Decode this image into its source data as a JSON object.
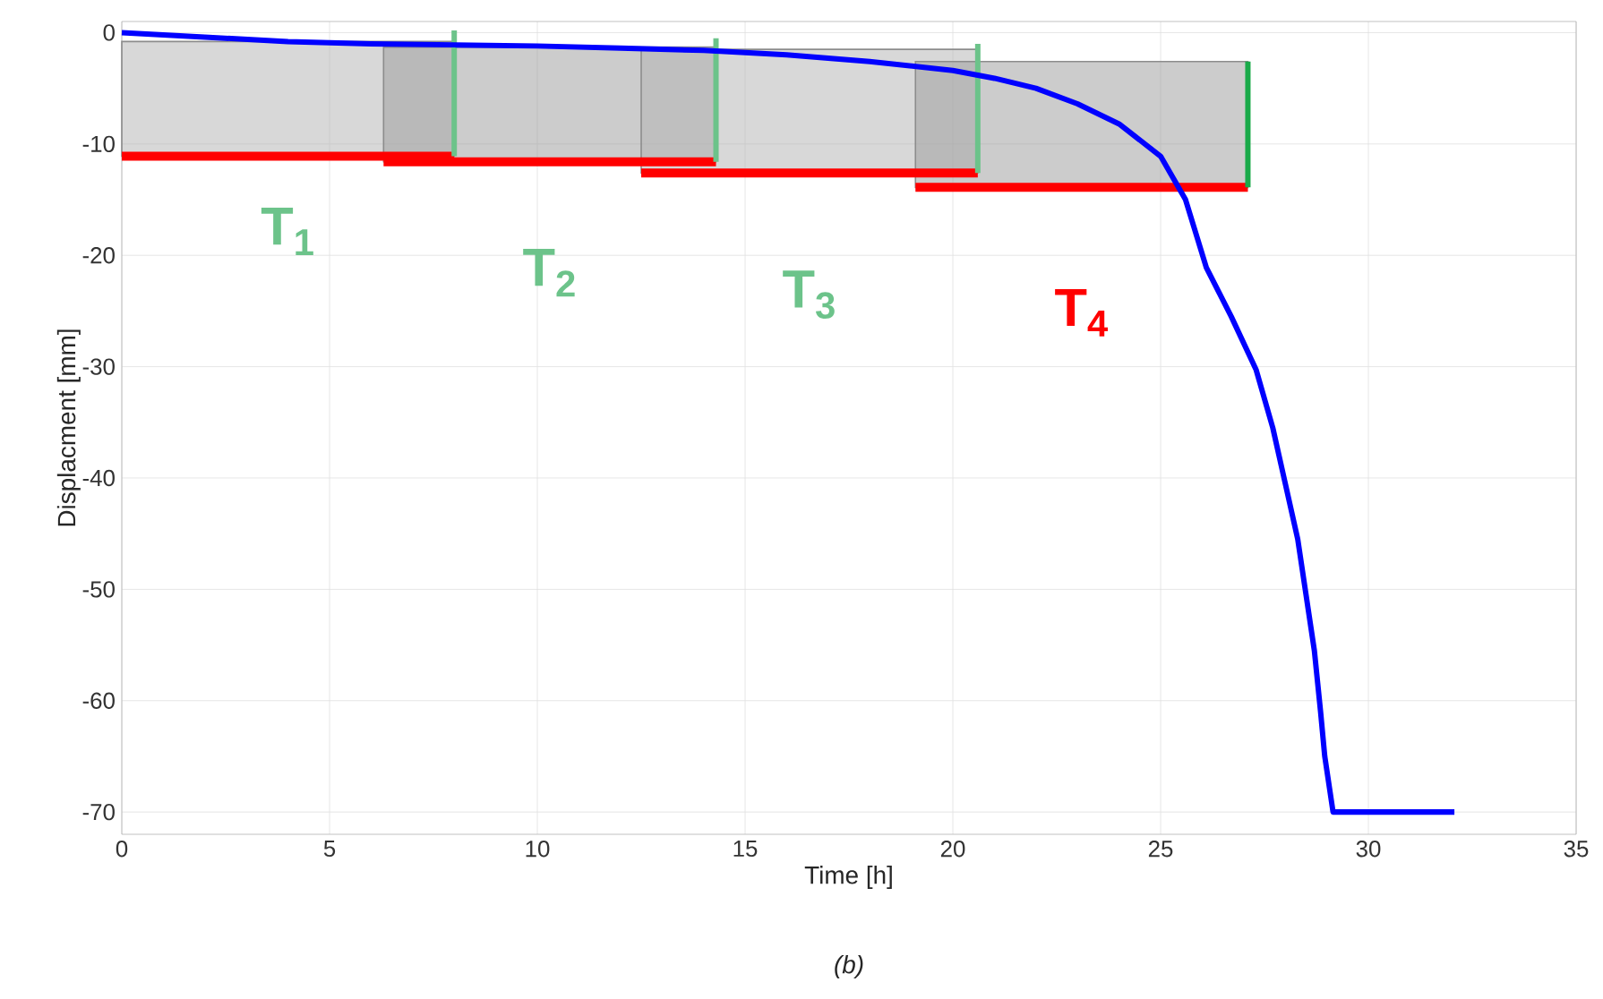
{
  "chart_data": {
    "type": "line",
    "xlabel": "Time [h]",
    "ylabel": "Displacment [mm]",
    "xlim": [
      0,
      35
    ],
    "ylim": [
      -72,
      1
    ],
    "xticks": [
      0,
      5,
      10,
      15,
      20,
      25,
      30,
      35
    ],
    "yticks": [
      0,
      -10,
      -20,
      -30,
      -40,
      -50,
      -60,
      -70
    ],
    "grid": true,
    "line_style": "solid",
    "series": [
      {
        "color": "#0000ff",
        "x": [
          0,
          2,
          4,
          6,
          8,
          10,
          12,
          14,
          16,
          18,
          20,
          21,
          22,
          23,
          24,
          25,
          25.6,
          26.1,
          26.7,
          27.3,
          27.7,
          28.0,
          28.3,
          28.5,
          28.7,
          28.85,
          28.95,
          29.15,
          32.07
        ],
        "values": [
          0,
          -0.4,
          -0.8,
          -1.0,
          -1.1,
          -1.2,
          -1.4,
          -1.6,
          -2.0,
          -2.6,
          -3.4,
          -4.1,
          -5.0,
          -6.4,
          -8.2,
          -11.1,
          -15,
          -21.1,
          -25.5,
          -30.3,
          -35.5,
          -40.5,
          -45.5,
          -50.5,
          -55.5,
          -61,
          -65,
          -70,
          -70
        ]
      },
      {
        "color": "#ff0000",
        "x": [
          0,
          8
        ],
        "values": [
          -11.1,
          -11.1
        ],
        "lower": [
          -11.1,
          -11.1
        ],
        "upper": [
          -0.8,
          -0.8
        ]
      },
      {
        "color": "#6cc38a",
        "x": [
          8,
          8
        ],
        "values": [
          -11.1,
          0.2
        ]
      },
      {
        "color": "#ff0000",
        "x": [
          6.3,
          14.3
        ],
        "values": [
          -11.6,
          -11.6
        ],
        "lower": [
          -11.6,
          -11.6
        ],
        "upper": [
          -1.3,
          -1.3
        ]
      },
      {
        "color": "#6cc38a",
        "x": [
          14.3,
          14.3
        ],
        "values": [
          -11.6,
          -0.5
        ]
      },
      {
        "color": "#ff0000",
        "x": [
          12.5,
          20.6
        ],
        "values": [
          -12.6,
          -12.6
        ],
        "lower": [
          -12.6,
          -12.6
        ],
        "upper": [
          -1.5,
          -1.5
        ]
      },
      {
        "color": "#6cc38a",
        "x": [
          20.6,
          20.6
        ],
        "values": [
          -12.6,
          -1.0
        ]
      },
      {
        "color": "#ff0000",
        "x": [
          19.1,
          27.1
        ],
        "values": [
          -13.9,
          -13.9
        ],
        "lower": [
          -13.9,
          -13.9
        ],
        "upper": [
          -2.6,
          -2.6
        ]
      },
      {
        "color": "#1aaa4a",
        "x": [
          27.1,
          27.1
        ],
        "values": [
          -13.9,
          -2.6
        ]
      }
    ],
    "annotations": [
      "T$_{1}$",
      "T$_{2}$",
      "T$_{3}$",
      "T$_{4}$",
      "(b)"
    ]
  }
}
